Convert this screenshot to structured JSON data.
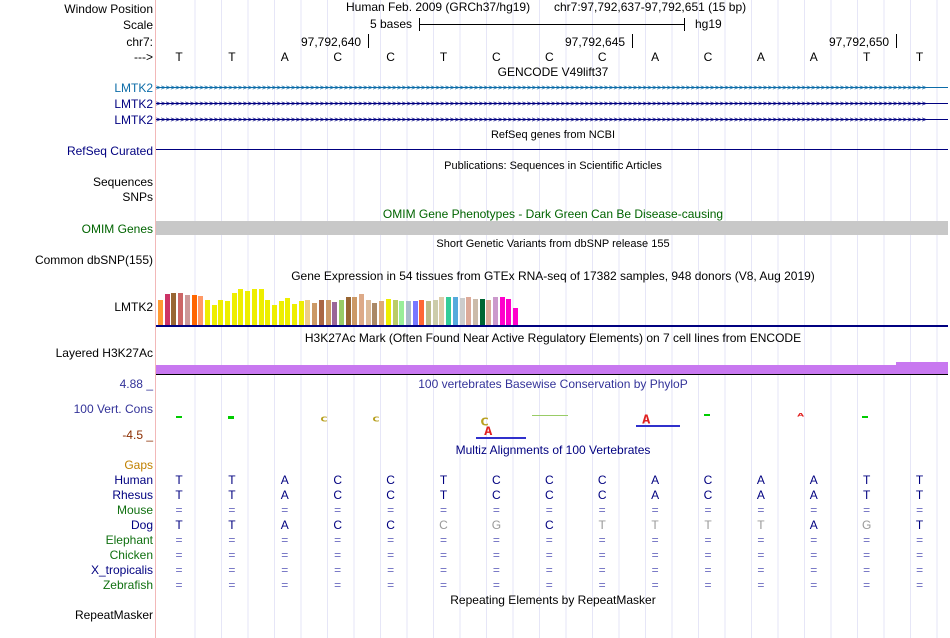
{
  "labels": {
    "window_position": "Window Position",
    "scale": "Scale",
    "chr": "chr7:",
    "arrow": "--->",
    "gencode_1": "LMTK2",
    "gencode_2": "LMTK2",
    "gencode_3": "LMTK2",
    "refseq": "RefSeq Curated",
    "sequences": "Sequences",
    "snps": "SNPs",
    "omim": "OMIM Genes",
    "dbsnp": "Common dbSNP(155)",
    "gtex_gene": "LMTK2",
    "h3k27ac": "Layered H3K27Ac",
    "cons_max": "4.88 _",
    "cons_name": "100 Vert. Cons",
    "cons_min": "-4.5 _",
    "gaps": "Gaps",
    "species": [
      "Human",
      "Rhesus",
      "Mouse",
      "Dog",
      "Elephant",
      "Chicken",
      "X_tropicalis",
      "Zebrafish"
    ],
    "repeatmasker": "RepeatMasker"
  },
  "header": {
    "assembly": "Human Feb. 2009 (GRCh37/hg19)",
    "position": "chr7:97,792,637-97,792,651 (15 bp)",
    "scale_text": "5 bases",
    "scale_db": "hg19",
    "coord_1": "97,792,640",
    "coord_2": "97,792,645",
    "coord_3": "97,792,650"
  },
  "titles": {
    "gencode": "GENCODE V49lift37",
    "refseq": "RefSeq genes from NCBI",
    "publications": "Publications: Sequences in Scientific Articles",
    "omim": "OMIM Gene Phenotypes - Dark Green Can Be Disease-causing",
    "dbsnp": "Short Genetic Variants from dbSNP release 155",
    "gtex": "Gene Expression in 54 tissues from GTEx RNA-seq of 17382 samples, 948 donors (V8, Aug 2019)",
    "h3k27ac": "H3K27Ac Mark (Often Found Near Active Regulatory Elements) on 7 cell lines from ENCODE",
    "phylop": "100 vertebrates Basewise Conservation by PhyloP",
    "multiz": "Multiz Alignments of 100 Vertebrates",
    "repeatmasker": "Repeating Elements by RepeatMasker"
  },
  "sequence": [
    "T",
    "T",
    "A",
    "C",
    "C",
    "T",
    "C",
    "C",
    "C",
    "A",
    "C",
    "A",
    "A",
    "T",
    "T"
  ],
  "alignment": {
    "human": [
      "T",
      "T",
      "A",
      "C",
      "C",
      "T",
      "C",
      "C",
      "C",
      "A",
      "C",
      "A",
      "A",
      "T",
      "T"
    ],
    "rhesus": [
      "T",
      "T",
      "A",
      "C",
      "C",
      "T",
      "C",
      "C",
      "C",
      "A",
      "C",
      "A",
      "A",
      "T",
      "T"
    ],
    "mouse": [
      "=",
      "=",
      "=",
      "=",
      "=",
      "=",
      "=",
      "=",
      "=",
      "=",
      "=",
      "=",
      "=",
      "=",
      "="
    ],
    "dog": [
      "T",
      "T",
      "A",
      "C",
      "C",
      "C",
      "G",
      "C",
      "T",
      "T",
      "T",
      "T",
      "A",
      "G",
      "T"
    ],
    "elephant": [
      "=",
      "=",
      "=",
      "=",
      "=",
      "=",
      "=",
      "=",
      "=",
      "=",
      "=",
      "=",
      "=",
      "=",
      "="
    ],
    "chicken": [
      "=",
      "=",
      "=",
      "=",
      "=",
      "=",
      "=",
      "=",
      "=",
      "=",
      "=",
      "=",
      "=",
      "=",
      "="
    ],
    "x_tropicalis": [
      "=",
      "=",
      "=",
      "=",
      "=",
      "=",
      "=",
      "=",
      "=",
      "=",
      "=",
      "=",
      "=",
      "=",
      "="
    ],
    "zebrafish": [
      "=",
      "=",
      "=",
      "=",
      "=",
      "=",
      "=",
      "=",
      "=",
      "=",
      "=",
      "=",
      "=",
      "=",
      "="
    ]
  },
  "dog_mismatch": [
    false,
    false,
    false,
    false,
    false,
    true,
    true,
    false,
    true,
    true,
    true,
    true,
    false,
    true,
    false
  ],
  "gtex": {
    "tissue_colors": [
      "#ff9933",
      "#cc3366",
      "#996633",
      "#cc6666",
      "#cc9999",
      "#ff6600",
      "#ff9966",
      "#eeee00",
      "#eeee00",
      "#eeee00",
      "#eeee00",
      "#eeee00",
      "#eeee00",
      "#eeee00",
      "#eeee00",
      "#eeee00",
      "#eeee00",
      "#eeee00",
      "#eeee00",
      "#eeee00",
      "#eeee00",
      "#eeee00",
      "#eecc88",
      "#cc9966",
      "#aa6644",
      "#cc9966",
      "#996699",
      "#99cc66",
      "#996633",
      "#cc9966",
      "#ddaa88",
      "#ddbb99",
      "#aa8866",
      "#ddaa77",
      "#eeee00",
      "#bbcc66",
      "#99ee99",
      "#aabbcc",
      "#7777ff",
      "#ff6633",
      "#bbbb88",
      "#ccccaa",
      "#ddccaa",
      "#33cc99",
      "#55aadd",
      "#cccccc",
      "#ddaa99",
      "#ccbbaa",
      "#006633",
      "#ddaa99",
      "#cc99cc",
      "#ff00cc",
      "#ff00cc",
      "#ff00cc"
    ],
    "tissue_values": [
      0.62,
      0.75,
      0.78,
      0.78,
      0.73,
      0.73,
      0.72,
      0.62,
      0.5,
      0.62,
      0.6,
      0.78,
      0.88,
      0.84,
      0.88,
      0.88,
      0.62,
      0.5,
      0.6,
      0.66,
      0.52,
      0.6,
      0.62,
      0.55,
      0.62,
      0.62,
      0.56,
      0.62,
      0.7,
      0.68,
      0.76,
      0.62,
      0.55,
      0.6,
      0.64,
      0.62,
      0.6,
      0.6,
      0.6,
      0.62,
      0.6,
      0.62,
      0.68,
      0.68,
      0.7,
      0.66,
      0.68,
      0.64,
      0.64,
      0.62,
      0.68,
      0.68,
      0.64,
      0.44
    ]
  },
  "colors": {
    "gencode_blue": "#0c6ca8",
    "navy": "#000080",
    "omim_green": "#006400",
    "omim_bar": "#c8c8c8",
    "h3k27ac_purple": "#c878f0",
    "phylop_blue": "#333399",
    "cons_min_red": "#8b2d00",
    "gaps_orange": "#c08000",
    "species_green": "#107010"
  }
}
